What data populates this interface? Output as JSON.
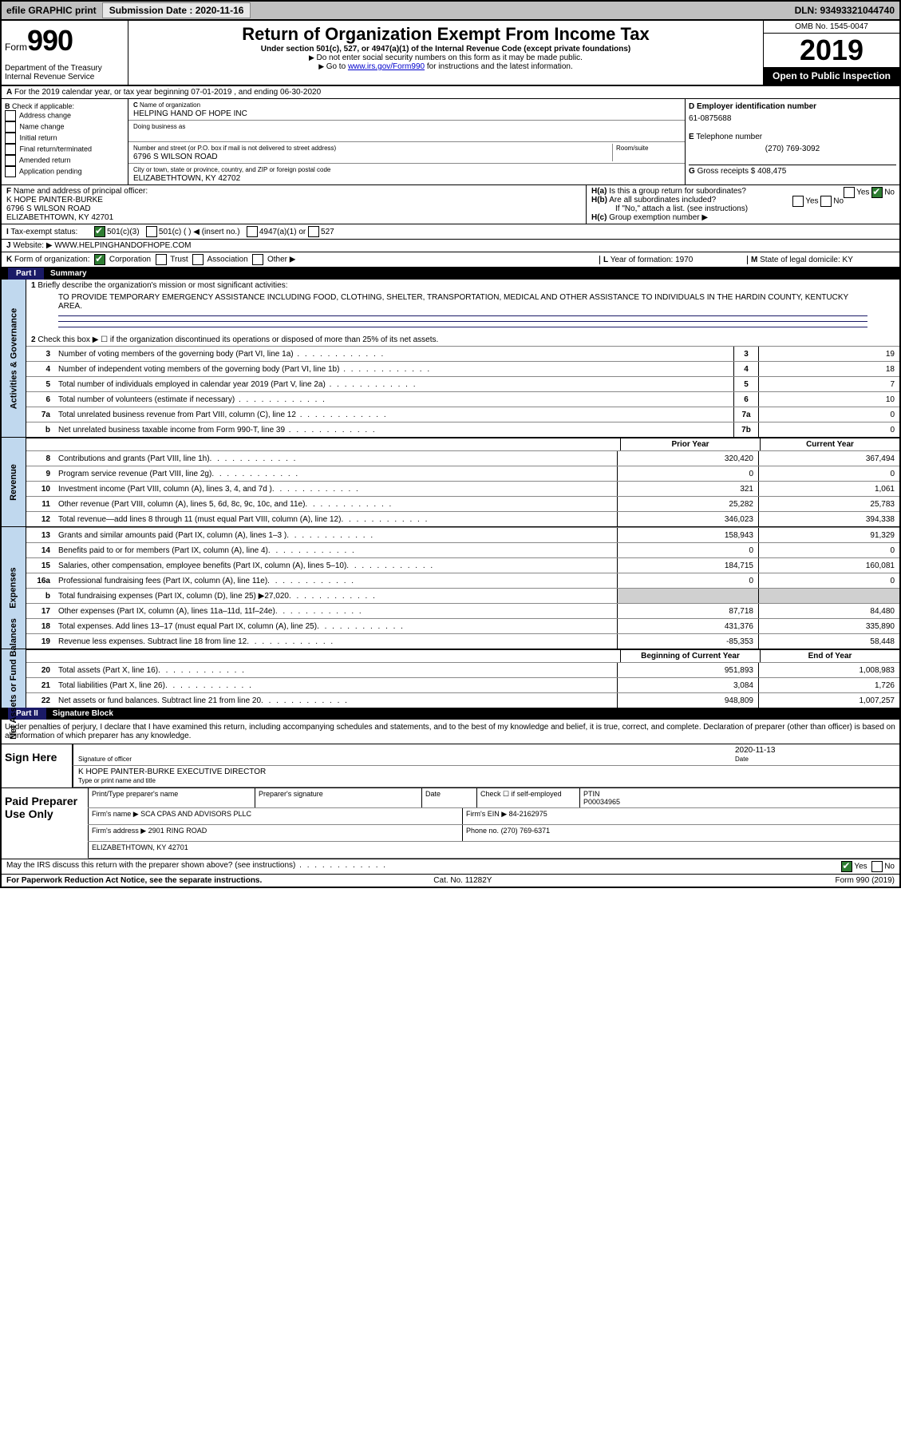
{
  "topbar": {
    "efile": "efile GRAPHIC print",
    "sub_lbl": "Submission Date :",
    "sub_date": "2020-11-16",
    "dln": "DLN: 93493321044740"
  },
  "hdr": {
    "form_word": "Form",
    "form_no": "990",
    "dept": "Department of the Treasury\nInternal Revenue Service",
    "title": "Return of Organization Exempt From Income Tax",
    "sub1": "Under section 501(c), 527, or 4947(a)(1) of the Internal Revenue Code (except private foundations)",
    "sub2": "Do not enter social security numbers on this form as it may be made public.",
    "sub3_a": "Go to ",
    "sub3_link": "www.irs.gov/Form990",
    "sub3_b": " for instructions and the latest information.",
    "omb": "OMB No. 1545-0047",
    "year": "2019",
    "otp": "Open to Public Inspection"
  },
  "rowA": "For the 2019 calendar year, or tax year beginning 07-01-2019   , and ending 06-30-2020",
  "B": {
    "lbl": "Check if applicable:",
    "opts": [
      "Address change",
      "Name change",
      "Initial return",
      "Final return/terminated",
      "Amended return",
      "Application pending"
    ]
  },
  "C": {
    "name_lbl": "Name of organization",
    "name": "HELPING HAND OF HOPE INC",
    "dba_lbl": "Doing business as",
    "addr_lbl": "Number and street (or P.O. box if mail is not delivered to street address)",
    "room": "Room/suite",
    "addr": "6796 S WILSON ROAD",
    "city_lbl": "City or town, state or province, country, and ZIP or foreign postal code",
    "city": "ELIZABETHTOWN, KY  42702"
  },
  "D": {
    "lbl": "Employer identification number",
    "val": "61-0875688"
  },
  "E": {
    "lbl": "Telephone number",
    "val": "(270) 769-3092"
  },
  "G": {
    "lbl": "Gross receipts $",
    "val": "408,475"
  },
  "F": {
    "lbl": "Name and address of principal officer:",
    "name": "K HOPE PAINTER-BURKE",
    "addr": "6796 S WILSON ROAD",
    "city": "ELIZABETHTOWN, KY  42701"
  },
  "H": {
    "a": "Is this a group return for subordinates?",
    "b": "Are all subordinates included?",
    "b2": "If \"No,\" attach a list. (see instructions)",
    "c": "Group exemption number ▶",
    "yes": "Yes",
    "no": "No"
  },
  "tax": {
    "lbl": "Tax-exempt status:",
    "o1": "501(c)(3)",
    "o2": "501(c) (  ) ◀ (insert no.)",
    "o3": "4947(a)(1) or",
    "o4": "527"
  },
  "J": {
    "lbl": "Website: ▶",
    "val": "WWW.HELPINGHANDOFHOPE.COM"
  },
  "K": {
    "lbl": "Form of organization:",
    "opts": [
      "Corporation",
      "Trust",
      "Association",
      "Other ▶"
    ]
  },
  "L": {
    "lbl": "Year of formation:",
    "val": "1970"
  },
  "M": {
    "lbl": "State of legal domicile:",
    "val": "KY"
  },
  "part1": {
    "hdr": "Part I",
    "title": "Summary"
  },
  "gov": {
    "side": "Activities & Governance",
    "l1_lbl": "Briefly describe the organization's mission or most significant activities:",
    "l1_txt": "TO PROVIDE TEMPORARY EMERGENCY ASSISTANCE INCLUDING FOOD, CLOTHING, SHELTER, TRANSPORTATION, MEDICAL AND OTHER ASSISTANCE TO INDIVIDUALS IN THE HARDIN COUNTY, KENTUCKY AREA.",
    "l2": "Check this box ▶ ☐  if the organization discontinued its operations or disposed of more than 25% of its net assets.",
    "rows": [
      {
        "n": "3",
        "t": "Number of voting members of the governing body (Part VI, line 1a)",
        "b": "3",
        "v": "19"
      },
      {
        "n": "4",
        "t": "Number of independent voting members of the governing body (Part VI, line 1b)",
        "b": "4",
        "v": "18"
      },
      {
        "n": "5",
        "t": "Total number of individuals employed in calendar year 2019 (Part V, line 2a)",
        "b": "5",
        "v": "7"
      },
      {
        "n": "6",
        "t": "Total number of volunteers (estimate if necessary)",
        "b": "6",
        "v": "10"
      },
      {
        "n": "7a",
        "t": "Total unrelated business revenue from Part VIII, column (C), line 12",
        "b": "7a",
        "v": "0"
      },
      {
        "n": "b",
        "t": "Net unrelated business taxable income from Form 990-T, line 39",
        "b": "7b",
        "v": "0"
      }
    ]
  },
  "cols": {
    "prior": "Prior Year",
    "curr": "Current Year",
    "beg": "Beginning of Current Year",
    "end": "End of Year"
  },
  "rev": {
    "side": "Revenue",
    "rows": [
      {
        "n": "8",
        "t": "Contributions and grants (Part VIII, line 1h)",
        "p": "320,420",
        "c": "367,494"
      },
      {
        "n": "9",
        "t": "Program service revenue (Part VIII, line 2g)",
        "p": "0",
        "c": "0"
      },
      {
        "n": "10",
        "t": "Investment income (Part VIII, column (A), lines 3, 4, and 7d )",
        "p": "321",
        "c": "1,061"
      },
      {
        "n": "11",
        "t": "Other revenue (Part VIII, column (A), lines 5, 6d, 8c, 9c, 10c, and 11e)",
        "p": "25,282",
        "c": "25,783"
      },
      {
        "n": "12",
        "t": "Total revenue—add lines 8 through 11 (must equal Part VIII, column (A), line 12)",
        "p": "346,023",
        "c": "394,338"
      }
    ]
  },
  "exp": {
    "side": "Expenses",
    "rows": [
      {
        "n": "13",
        "t": "Grants and similar amounts paid (Part IX, column (A), lines 1–3 )",
        "p": "158,943",
        "c": "91,329"
      },
      {
        "n": "14",
        "t": "Benefits paid to or for members (Part IX, column (A), line 4)",
        "p": "0",
        "c": "0"
      },
      {
        "n": "15",
        "t": "Salaries, other compensation, employee benefits (Part IX, column (A), lines 5–10)",
        "p": "184,715",
        "c": "160,081"
      },
      {
        "n": "16a",
        "t": "Professional fundraising fees (Part IX, column (A), line 11e)",
        "p": "0",
        "c": "0"
      },
      {
        "n": "b",
        "t": "Total fundraising expenses (Part IX, column (D), line 25) ▶27,020",
        "p": "",
        "c": "",
        "shade": true
      },
      {
        "n": "17",
        "t": "Other expenses (Part IX, column (A), lines 11a–11d, 11f–24e)",
        "p": "87,718",
        "c": "84,480"
      },
      {
        "n": "18",
        "t": "Total expenses. Add lines 13–17 (must equal Part IX, column (A), line 25)",
        "p": "431,376",
        "c": "335,890"
      },
      {
        "n": "19",
        "t": "Revenue less expenses. Subtract line 18 from line 12",
        "p": "-85,353",
        "c": "58,448"
      }
    ]
  },
  "net": {
    "side": "Net Assets or Fund Balances",
    "rows": [
      {
        "n": "20",
        "t": "Total assets (Part X, line 16)",
        "p": "951,893",
        "c": "1,008,983"
      },
      {
        "n": "21",
        "t": "Total liabilities (Part X, line 26)",
        "p": "3,084",
        "c": "1,726"
      },
      {
        "n": "22",
        "t": "Net assets or fund balances. Subtract line 21 from line 20",
        "p": "948,809",
        "c": "1,007,257"
      }
    ]
  },
  "part2": {
    "hdr": "Part II",
    "title": "Signature Block"
  },
  "declare": "Under penalties of perjury, I declare that I have examined this return, including accompanying schedules and statements, and to the best of my knowledge and belief, it is true, correct, and complete. Declaration of preparer (other than officer) is based on all information of which preparer has any knowledge.",
  "sign": {
    "lbl": "Sign Here",
    "sig_lbl": "Signature of officer",
    "date_lbl": "Date",
    "date": "2020-11-13",
    "name": "K HOPE PAINTER-BURKE  EXECUTIVE DIRECTOR",
    "name_lbl": "Type or print name and title"
  },
  "prep": {
    "lbl": "Paid Preparer Use Only",
    "h1": "Print/Type preparer's name",
    "h2": "Preparer's signature",
    "h3": "Date",
    "h4": "Check ☐ if self-employed",
    "h5": "PTIN",
    "ptin": "P00034965",
    "firm_lbl": "Firm's name  ▶",
    "firm": "SCA CPAS AND ADVISORS PLLC",
    "ein_lbl": "Firm's EIN ▶",
    "ein": "84-2162975",
    "addr_lbl": "Firm's address ▶",
    "addr": "2901 RING ROAD",
    "city": "ELIZABETHTOWN, KY  42701",
    "ph_lbl": "Phone no.",
    "ph": "(270) 769-6371"
  },
  "discuss": {
    "lbl": "May the IRS discuss this return with the preparer shown above? (see instructions)",
    "yes": "Yes",
    "no": "No"
  },
  "footer": {
    "l": "For Paperwork Reduction Act Notice, see the separate instructions.",
    "m": "Cat. No. 11282Y",
    "r": "Form 990 (2019)"
  }
}
